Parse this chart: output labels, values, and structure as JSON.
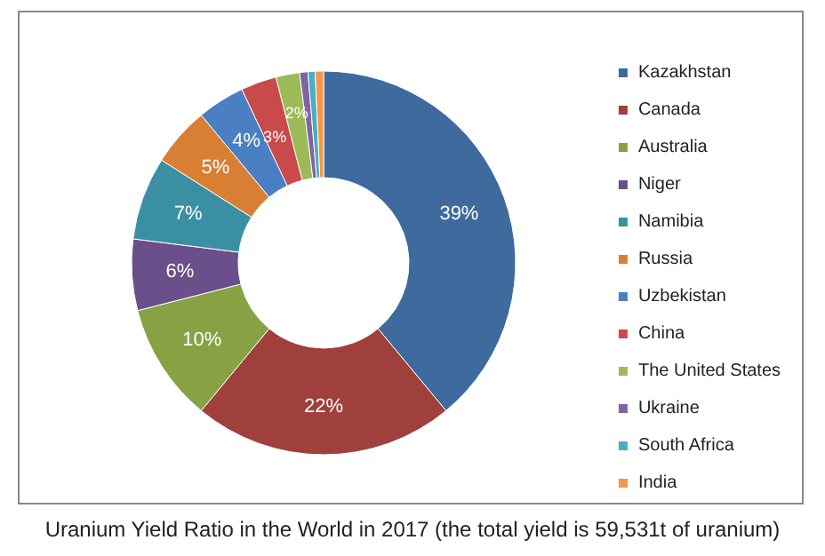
{
  "chart_data": {
    "type": "donut",
    "title": "Uranium Yield Ratio in the World in 2017 (the total yield is 59,531t of uranium)",
    "categories": [
      "Kazakhstan",
      "Canada",
      "Australia",
      "Niger",
      "Namibia",
      "Russia",
      "Uzbekistan",
      "China",
      "The United States",
      "Ukraine",
      "South Africa",
      "India"
    ],
    "values": [
      39,
      22,
      10,
      6,
      7,
      5,
      4,
      3,
      2,
      0.7,
      0.6,
      0.7
    ],
    "value_labels": [
      "39%",
      "22%",
      "10%",
      "6%",
      "7%",
      "5%",
      "4%",
      "3%",
      "2%",
      null,
      null,
      null
    ],
    "colors": [
      "#3f6a9e",
      "#a0403d",
      "#87a143",
      "#6a4f8a",
      "#3b8fa3",
      "#d97f33",
      "#4a7fc4",
      "#c84a4a",
      "#9bbb59",
      "#8064a2",
      "#4bacc6",
      "#f79646"
    ],
    "legend": "right"
  }
}
